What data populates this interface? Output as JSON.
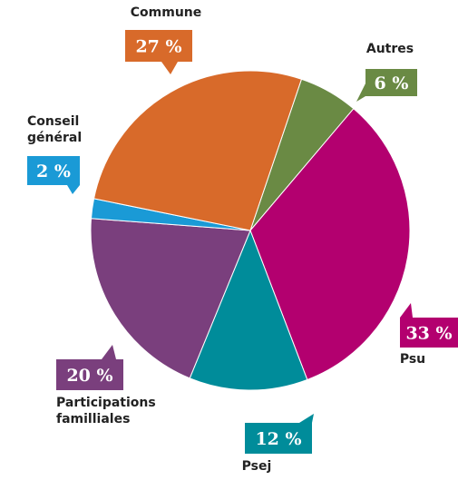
{
  "chart_data": {
    "type": "pie",
    "categories": [
      "Autres",
      "Psu",
      "Psej",
      "Participations familliales",
      "Conseil général",
      "Commune"
    ],
    "values": [
      6,
      33,
      12,
      20,
      2,
      27
    ],
    "value_labels": [
      "6 %",
      "33 %",
      "12 %",
      "20 %",
      "2 %",
      "27 %"
    ],
    "colors": [
      "#6a8a44",
      "#b3006f",
      "#008c9a",
      "#7a3f7d",
      "#1a9ad6",
      "#d86a2a"
    ]
  }
}
